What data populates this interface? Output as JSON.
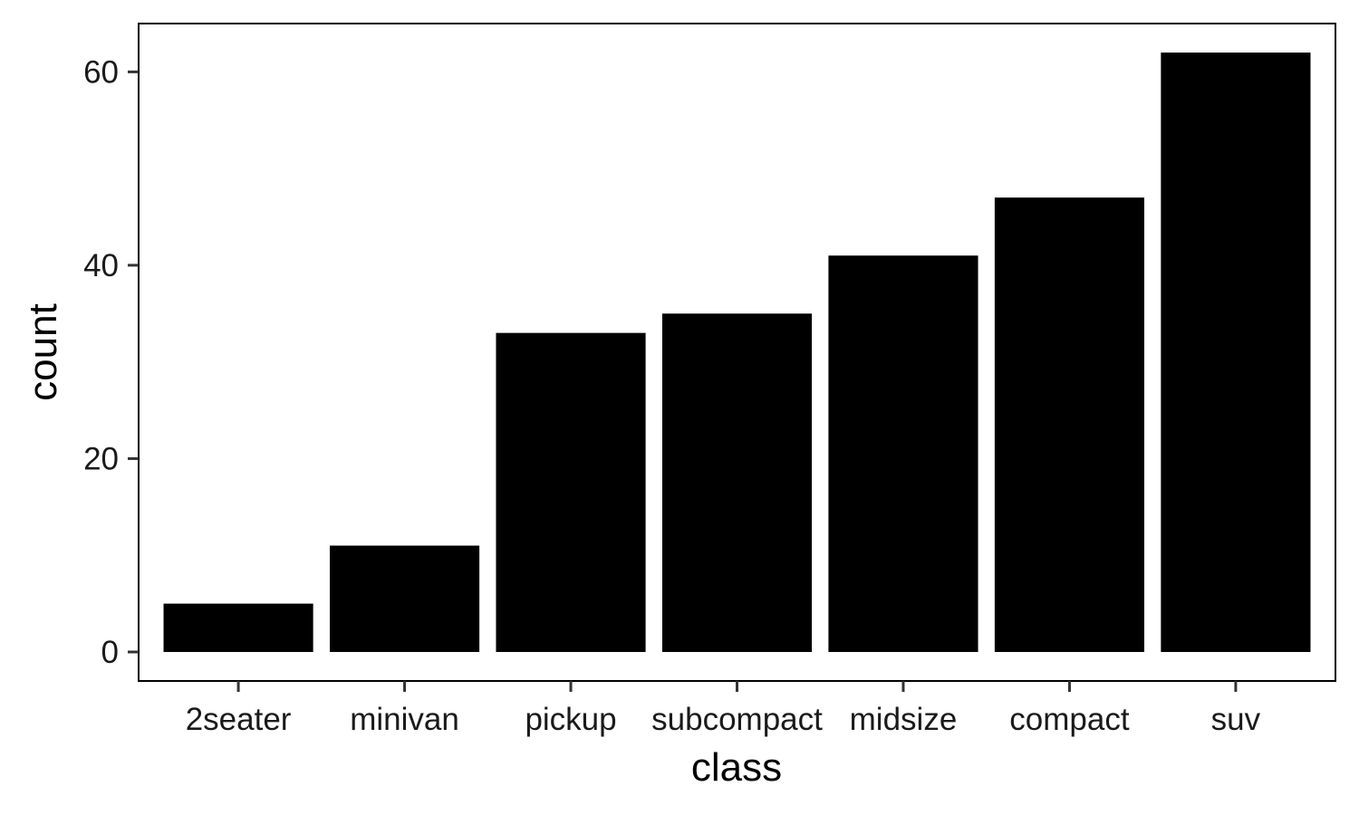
{
  "chart_data": {
    "type": "bar",
    "categories": [
      "2seater",
      "minivan",
      "pickup",
      "subcompact",
      "midsize",
      "compact",
      "suv"
    ],
    "values": [
      5,
      11,
      33,
      35,
      41,
      47,
      62
    ],
    "title": "",
    "xlabel": "class",
    "ylabel": "count",
    "ylim": [
      -3,
      65
    ],
    "yticks": [
      0,
      20,
      40,
      60
    ],
    "grid": false,
    "legend": "none",
    "colors": {
      "bar": "#000000",
      "frame": "#000000",
      "tick": "#333333",
      "background": "#ffffff"
    }
  }
}
